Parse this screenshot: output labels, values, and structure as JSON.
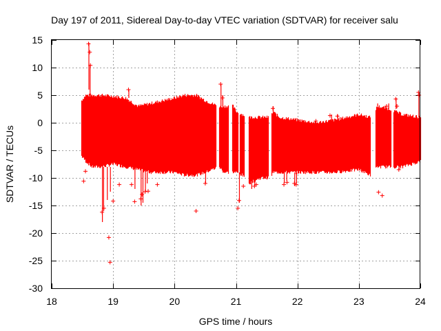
{
  "chart_data": {
    "type": "scatter",
    "title": "Day 197 of 2011, Sidereal Day-to-day VTEC variation (SDTVAR) for receiver salu",
    "xlabel": "GPS time / hours",
    "ylabel": "SDTVAR / TECUs",
    "xlim": [
      18,
      24
    ],
    "ylim": [
      -30,
      15
    ],
    "xticks": [
      "18",
      "19",
      "20",
      "21",
      "22",
      "23",
      "24"
    ],
    "yticks": [
      "15",
      "10",
      "5",
      "0",
      "-5",
      "-10",
      "-15",
      "-20",
      "-25",
      "-30"
    ],
    "grid": true,
    "marker": "+",
    "series": [
      {
        "name": "SDTVAR",
        "color": "#ff0000",
        "band_upper": [
          [
            18.48,
            4.0
          ],
          [
            18.55,
            5.0
          ],
          [
            18.65,
            5.0
          ],
          [
            18.8,
            5.0
          ],
          [
            19.0,
            4.8
          ],
          [
            19.2,
            4.5
          ],
          [
            19.4,
            3.0
          ],
          [
            19.6,
            3.5
          ],
          [
            19.8,
            4.0
          ],
          [
            20.0,
            4.5
          ],
          [
            20.15,
            5.0
          ],
          [
            20.35,
            5.0
          ],
          [
            20.5,
            4.0
          ],
          [
            20.6,
            3.5
          ],
          [
            20.72,
            3.0
          ],
          [
            20.8,
            3.0
          ],
          [
            20.95,
            3.0
          ],
          [
            21.0,
            2.0
          ],
          [
            21.1,
            1.5
          ],
          [
            21.2,
            1.0
          ],
          [
            21.4,
            1.0
          ],
          [
            21.55,
            1.0
          ],
          [
            21.6,
            2.0
          ],
          [
            21.7,
            1.0
          ],
          [
            22.0,
            0.5
          ],
          [
            22.3,
            0.0
          ],
          [
            22.6,
            0.5
          ],
          [
            23.0,
            1.5
          ],
          [
            23.18,
            1.0
          ],
          [
            23.3,
            3.0
          ],
          [
            23.5,
            2.5
          ],
          [
            23.7,
            1.5
          ],
          [
            24.0,
            1.0
          ]
        ],
        "band_lower": [
          [
            18.48,
            -6.0
          ],
          [
            18.55,
            -7.0
          ],
          [
            18.65,
            -8.0
          ],
          [
            18.8,
            -8.0
          ],
          [
            19.0,
            -7.5
          ],
          [
            19.2,
            -8.0
          ],
          [
            19.4,
            -8.5
          ],
          [
            19.6,
            -9.0
          ],
          [
            19.8,
            -9.0
          ],
          [
            20.0,
            -9.0
          ],
          [
            20.15,
            -9.5
          ],
          [
            20.35,
            -9.5
          ],
          [
            20.5,
            -9.0
          ],
          [
            20.6,
            -8.5
          ],
          [
            20.72,
            -8.0
          ],
          [
            20.8,
            -9.0
          ],
          [
            20.95,
            -9.0
          ],
          [
            21.0,
            -9.0
          ],
          [
            21.1,
            -9.5
          ],
          [
            21.2,
            -11.0
          ],
          [
            21.4,
            -10.0
          ],
          [
            21.55,
            -10.0
          ],
          [
            21.6,
            -9.0
          ],
          [
            21.7,
            -9.0
          ],
          [
            22.0,
            -9.0
          ],
          [
            22.3,
            -9.0
          ],
          [
            22.6,
            -9.0
          ],
          [
            23.0,
            -8.5
          ],
          [
            23.18,
            -9.5
          ],
          [
            23.3,
            -8.0
          ],
          [
            23.5,
            -8.0
          ],
          [
            23.7,
            -8.0
          ],
          [
            24.0,
            -7.0
          ]
        ],
        "dense_range": [
          18.48,
          24.0
        ],
        "gaps": [
          [
            20.67,
            20.72
          ],
          [
            20.88,
            20.93
          ],
          [
            21.03,
            21.06
          ],
          [
            21.14,
            21.2
          ],
          [
            21.53,
            21.57
          ],
          [
            23.19,
            23.27
          ],
          [
            23.52,
            23.56
          ]
        ],
        "spikes": [
          [
            18.6,
            6.0,
            14.5
          ],
          [
            18.62,
            5.0,
            10.5
          ],
          [
            18.82,
            -8.0,
            -18.0
          ],
          [
            18.84,
            -8.0,
            -16.0
          ],
          [
            18.9,
            -8.0,
            -14.0
          ],
          [
            18.95,
            -8.0,
            -12.5
          ],
          [
            19.25,
            4.5,
            6.0
          ],
          [
            19.35,
            -8.0,
            -12.0
          ],
          [
            19.45,
            -8.0,
            -15.0
          ],
          [
            19.48,
            -8.5,
            -14.5
          ],
          [
            19.52,
            -8.5,
            -12.5
          ],
          [
            19.55,
            -9.0,
            -11.0
          ],
          [
            20.5,
            -9.0,
            -11.0
          ],
          [
            20.75,
            3.0,
            7.0
          ],
          [
            20.78,
            3.0,
            5.0
          ],
          [
            21.05,
            -9.0,
            -14.5
          ],
          [
            21.25,
            -10.0,
            -12.0
          ],
          [
            21.3,
            -10.0,
            -11.5
          ],
          [
            21.6,
            2.0,
            3.0
          ],
          [
            21.78,
            -9.0,
            -11.0
          ],
          [
            21.82,
            -9.0,
            -10.5
          ],
          [
            21.95,
            -9.0,
            -11.5
          ],
          [
            21.98,
            -9.0,
            -11.0
          ],
          [
            22.55,
            0.5,
            1.5
          ],
          [
            22.65,
            0.5,
            1.5
          ],
          [
            23.3,
            3.0,
            3.5
          ],
          [
            23.48,
            2.5,
            3.5
          ],
          [
            23.6,
            2.5,
            4.5
          ],
          [
            23.65,
            -8.0,
            -8.5
          ],
          [
            23.97,
            1.0,
            5.5
          ]
        ],
        "outliers": [
          [
            18.6,
            14.3
          ],
          [
            18.62,
            12.8
          ],
          [
            18.63,
            10.4
          ],
          [
            18.52,
            -10.6
          ],
          [
            18.55,
            -8.8
          ],
          [
            18.82,
            -16.2
          ],
          [
            18.85,
            -15.5
          ],
          [
            18.93,
            -20.8
          ],
          [
            18.95,
            -25.3
          ],
          [
            19.0,
            -14.2
          ],
          [
            19.1,
            -11.2
          ],
          [
            19.25,
            6.0
          ],
          [
            19.3,
            -11.2
          ],
          [
            19.35,
            -14.3
          ],
          [
            19.45,
            -13.8
          ],
          [
            19.47,
            -13.0
          ],
          [
            19.52,
            -12.5
          ],
          [
            19.57,
            -12.4
          ],
          [
            19.72,
            -11.2
          ],
          [
            20.35,
            -16.0
          ],
          [
            20.5,
            -11.0
          ],
          [
            20.75,
            7.0
          ],
          [
            20.78,
            4.5
          ],
          [
            21.03,
            -15.5
          ],
          [
            21.05,
            -14.1
          ],
          [
            21.12,
            -11.5
          ],
          [
            21.3,
            -11.5
          ],
          [
            21.33,
            -11.2
          ],
          [
            21.6,
            2.6
          ],
          [
            21.65,
            1.0
          ],
          [
            21.78,
            -11.2
          ],
          [
            21.83,
            -10.8
          ],
          [
            21.95,
            -11.0
          ],
          [
            21.98,
            -11.2
          ],
          [
            22.3,
            0.3
          ],
          [
            22.53,
            1.3
          ],
          [
            22.65,
            1.2
          ],
          [
            23.32,
            -12.6
          ],
          [
            23.38,
            -13.2
          ],
          [
            23.45,
            3.0
          ],
          [
            23.6,
            4.3
          ],
          [
            23.62,
            3.0
          ],
          [
            23.65,
            -8.5
          ],
          [
            23.97,
            5.5
          ],
          [
            23.98,
            5.0
          ]
        ]
      }
    ]
  }
}
